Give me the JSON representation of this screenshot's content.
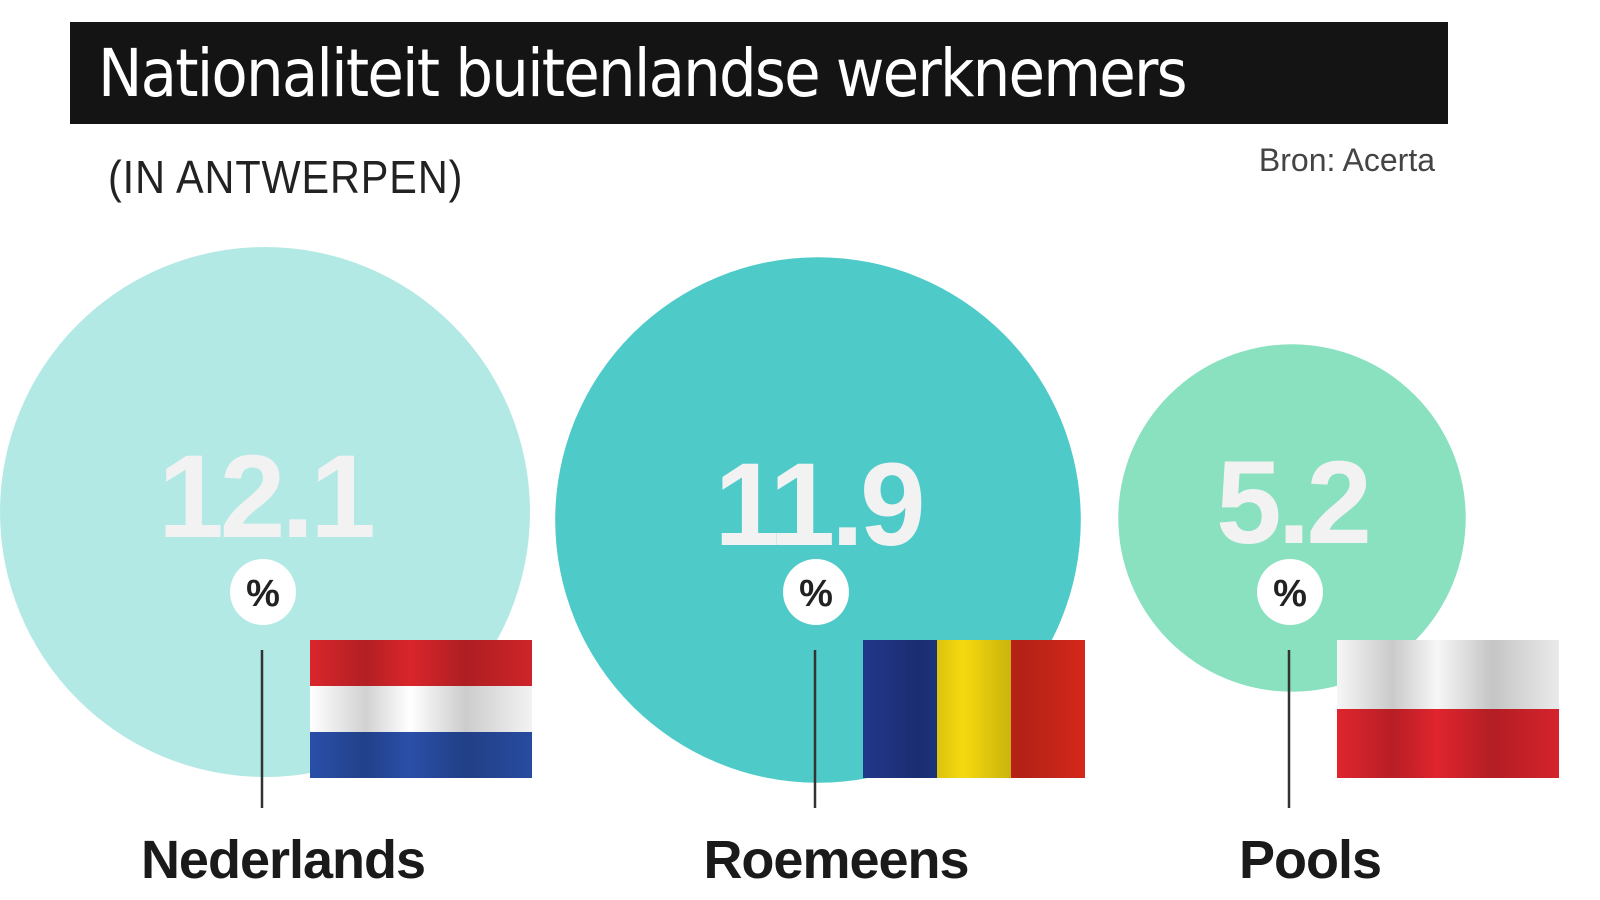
{
  "title": "Nationaliteit buitenlandse werknemers",
  "subtitle": "(IN ANTWERPEN)",
  "source": "Bron: Acerta",
  "colors": {
    "title_bg": "#141414",
    "value_text": "#f2f2f2",
    "label_text": "#1a1a1a",
    "line": "#333333"
  },
  "chart_data": {
    "type": "bubble",
    "title": "Nationaliteit buitenlandse werknemers",
    "subtitle": "(IN ANTWERPEN)",
    "unit": "%",
    "source": "Bron: Acerta",
    "items": [
      {
        "label": "Nederlands",
        "value": 12.1,
        "value_text": "12.1",
        "unit": "%",
        "color": "#b3e9e5",
        "flag": "nl-flag"
      },
      {
        "label": "Roemeens",
        "value": 11.9,
        "value_text": "11.9",
        "unit": "%",
        "color": "#4ecbc8",
        "flag": "ro-flag"
      },
      {
        "label": "Pools",
        "value": 5.2,
        "value_text": "5.2",
        "unit": "%",
        "color": "#89e1c0",
        "flag": "pl-flag"
      }
    ]
  }
}
